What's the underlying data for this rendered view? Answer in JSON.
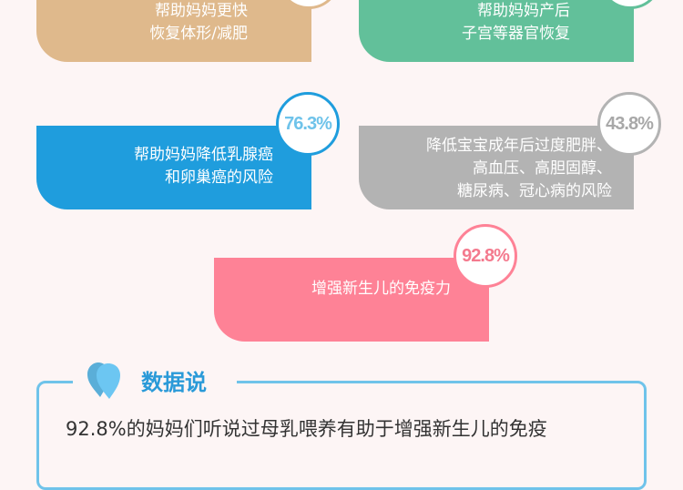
{
  "cards": [
    {
      "lines": [
        "帮助妈妈更快",
        "恢复体形/减肥"
      ],
      "percent": "",
      "color": "#dfb98c"
    },
    {
      "lines": [
        "帮助妈妈产后",
        "子宫等器官恢复"
      ],
      "percent": "",
      "color": "#62c09a"
    },
    {
      "lines": [
        "帮助妈妈降低乳腺癌",
        "和卵巢癌的风险"
      ],
      "percent": "76.3%",
      "color": "#1f9ddd",
      "percent_color": "#6fc3ea"
    },
    {
      "lines": [
        "降低宝宝成年后过度肥胖、",
        "高血压、高胆固醇、",
        "糖尿病、冠心病的风险"
      ],
      "percent": "43.8%",
      "color": "#b3b3b3",
      "percent_color": "#a8a8a8"
    },
    {
      "lines": [
        "增强新生儿的免疫力"
      ],
      "percent": "92.8%",
      "color": "#fe8296",
      "percent_color": "#f47a8e"
    }
  ],
  "data_section": {
    "icon": "heart-drop-icon",
    "heading": "数据说",
    "text": "92.8%的妈妈们听说过母乳喂养有助于增强新生儿的免疫"
  }
}
